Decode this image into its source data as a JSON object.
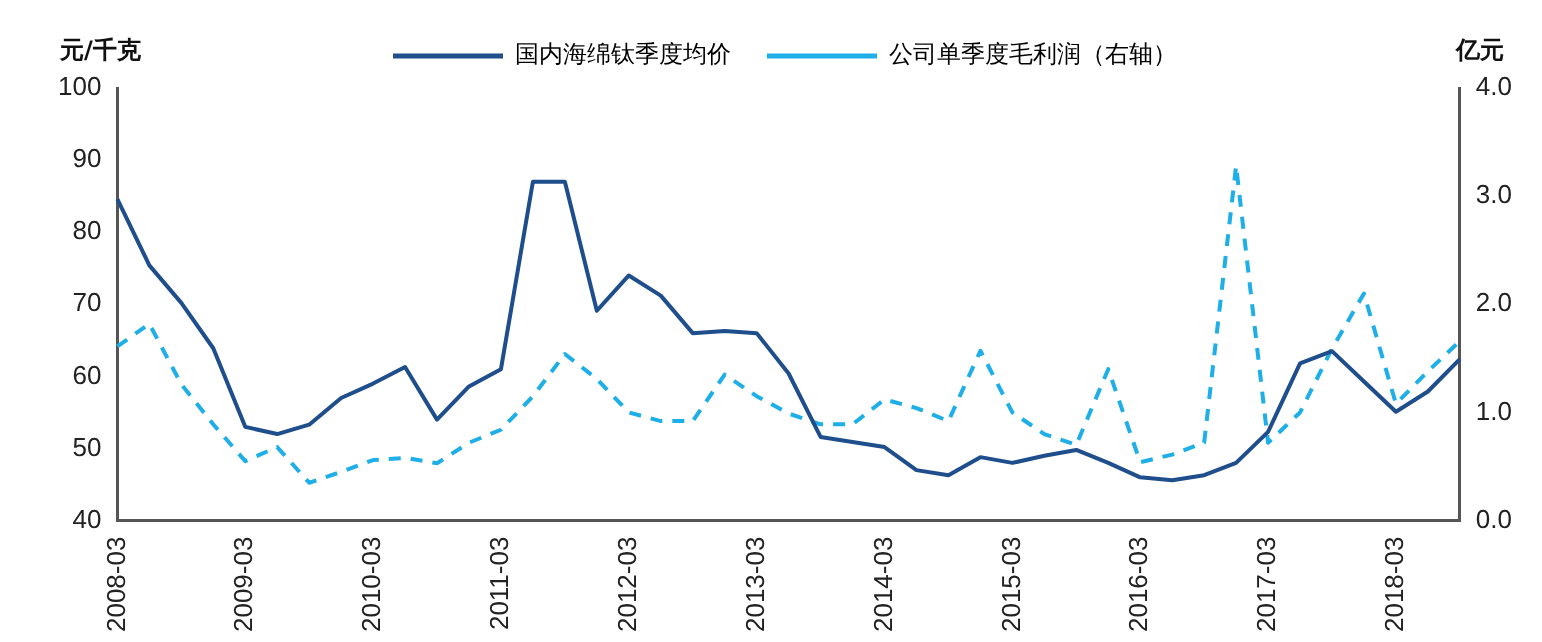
{
  "chart_data": {
    "type": "line",
    "ylabel": "元/千克",
    "y2label": "亿元",
    "categories": [
      "2008-03",
      null,
      null,
      null,
      "2009-03",
      null,
      null,
      null,
      "2010-03",
      null,
      null,
      null,
      "2011-03",
      null,
      null,
      null,
      "2012-03",
      null,
      null,
      null,
      "2013-03",
      null,
      null,
      null,
      "2014-03",
      null,
      null,
      null,
      "2015-03",
      null,
      null,
      null,
      "2016-03",
      null,
      null,
      null,
      "2017-03",
      null,
      null,
      null,
      "2018-03",
      null,
      null
    ],
    "series": [
      {
        "name": "国内海绵钛季度均价",
        "color": "#1f4e8c",
        "line_style": "solid",
        "values": [
          84.6,
          75.4,
          70.2,
          63.9,
          53,
          52,
          53.3,
          57,
          59,
          61.3,
          54,
          58.6,
          61,
          87,
          87,
          69.1,
          74,
          71.2,
          66,
          66.3,
          66,
          60.4,
          51.6,
          50.9,
          50.2,
          47,
          46.3,
          48.8,
          48,
          49,
          49.8,
          48,
          46,
          45.6,
          46.3,
          48,
          52.3,
          61.8,
          63.5,
          59.3,
          55.1,
          57.9,
          62.4
        ]
      },
      {
        "name": "公司单季度毛利润（右轴）",
        "color": "#1eaee8",
        "axis": "y2",
        "line_style": "dashed",
        "values": [
          1.61,
          1.82,
          1.26,
          0.89,
          0.55,
          0.68,
          0.35,
          0.45,
          0.56,
          0.58,
          0.53,
          0.72,
          0.84,
          1.15,
          1.54,
          1.31,
          1.0,
          0.92,
          0.92,
          1.35,
          1.15,
          0.99,
          0.89,
          0.89,
          1.12,
          1.04,
          0.92,
          1.57,
          1.0,
          0.8,
          0.7,
          1.4,
          0.54,
          0.61,
          0.72,
          3.28,
          0.72,
          1.0,
          1.59,
          2.1,
          1.08,
          1.38,
          1.66
        ]
      }
    ],
    "ylim": [
      40,
      100
    ],
    "yticks": [
      40,
      50,
      60,
      70,
      80,
      90,
      100
    ],
    "y2lim": [
      0,
      4
    ],
    "y2ticks": [
      {
        "value": 0,
        "label": "0.0"
      },
      {
        "value": 1,
        "label": "1.0"
      },
      {
        "value": 2,
        "label": "2.0"
      },
      {
        "value": 3,
        "label": "3.0"
      },
      {
        "value": 4,
        "label": "4.0"
      }
    ],
    "grid": false,
    "legend": "top",
    "marker": "none"
  }
}
